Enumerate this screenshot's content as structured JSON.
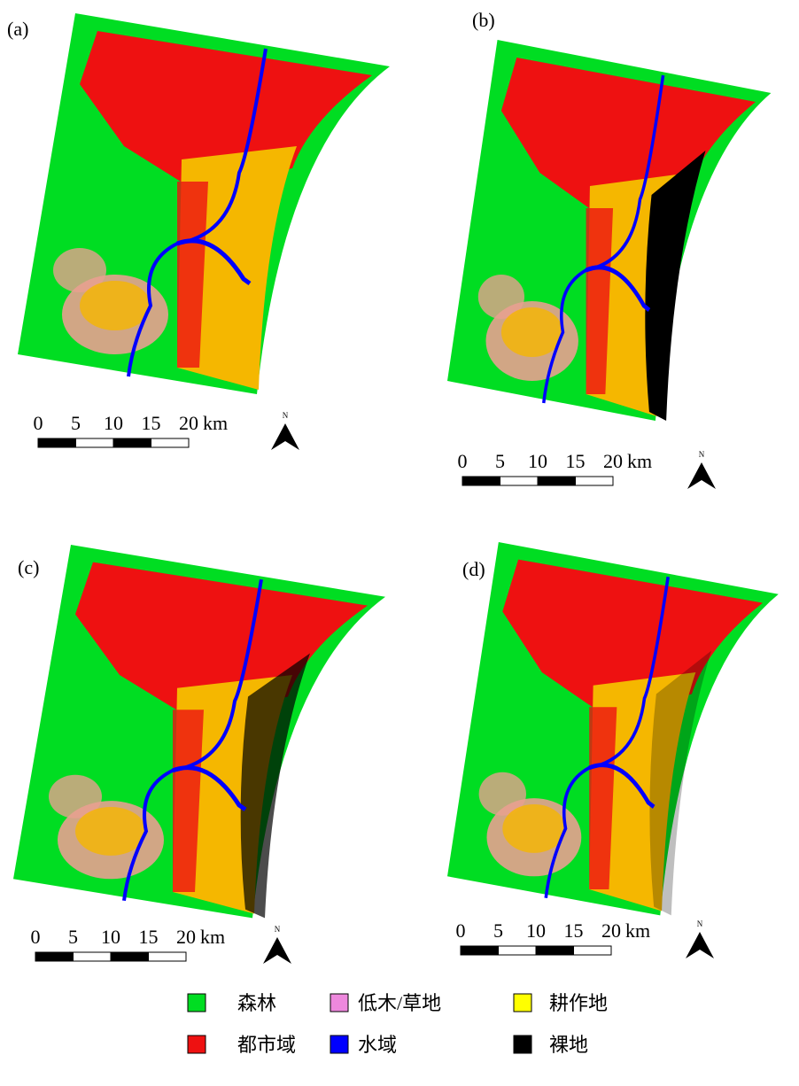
{
  "panels": [
    {
      "label": "(a)",
      "scale_ticks": [
        0,
        5,
        10,
        15,
        20
      ],
      "scale_unit": "km",
      "north": "N"
    },
    {
      "label": "(b)",
      "scale_ticks": [
        0,
        5,
        10,
        15,
        20
      ],
      "scale_unit": "km",
      "north": "N"
    },
    {
      "label": "(c)",
      "scale_ticks": [
        0,
        5,
        10,
        15,
        20
      ],
      "scale_unit": "km",
      "north": "N"
    },
    {
      "label": "(d)",
      "scale_ticks": [
        0,
        5,
        10,
        15,
        20
      ],
      "scale_unit": "km",
      "north": "N"
    }
  ],
  "legend": [
    {
      "label": "森林",
      "color": "#00dd22"
    },
    {
      "label": "低木/草地",
      "color": "#ee88dd"
    },
    {
      "label": "耕作地",
      "color": "#ffff00"
    },
    {
      "label": "都市域",
      "color": "#ee1111"
    },
    {
      "label": "水域",
      "color": "#0000ff"
    },
    {
      "label": "裸地",
      "color": "#000000"
    }
  ]
}
